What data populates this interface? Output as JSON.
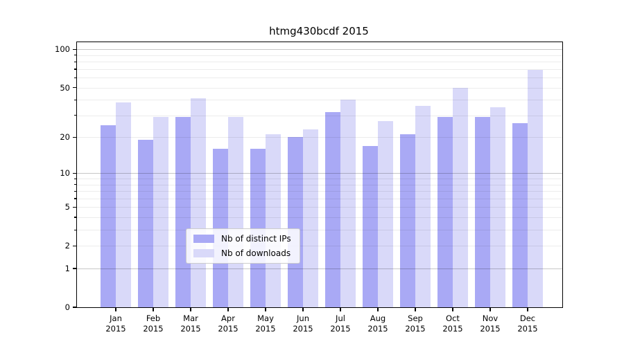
{
  "figure": {
    "title": "htmg430bcdf 2015"
  },
  "chart_data": {
    "type": "bar",
    "title": "htmg430bcdf 2015",
    "categories": [
      "Jan",
      "Feb",
      "Mar",
      "Apr",
      "May",
      "Jun",
      "Jul",
      "Aug",
      "Sep",
      "Oct",
      "Nov",
      "Dec"
    ],
    "x_tick_second_line": "2015",
    "series": [
      {
        "name": "Nb of distinct IPs",
        "color": "#a9a9f5",
        "values": [
          25,
          19,
          29,
          16,
          16,
          20,
          32,
          17,
          21,
          29,
          29,
          26
        ]
      },
      {
        "name": "Nb of downloads",
        "color": "#d9d9f9",
        "values": [
          38,
          29,
          41,
          29,
          21,
          23,
          40,
          27,
          36,
          50,
          35,
          69
        ]
      }
    ],
    "xlabel": "",
    "ylabel": "",
    "y_scale": "log10(1+v)",
    "ylim": [
      0,
      113
    ],
    "y_ticks": [
      0,
      1,
      2,
      5,
      10,
      20,
      50,
      100
    ],
    "y_major_gridlines": [
      1,
      10,
      100
    ],
    "y_minor_gridlines": [
      2,
      3,
      4,
      5,
      6,
      7,
      8,
      9,
      20,
      30,
      40,
      50,
      60,
      70,
      80,
      90
    ],
    "grid": true,
    "legend_position": "lower center"
  }
}
